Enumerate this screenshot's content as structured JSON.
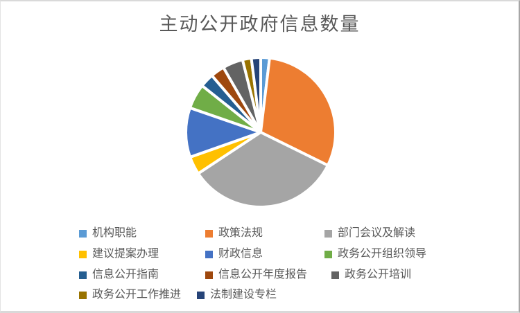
{
  "chart_data": {
    "type": "pie",
    "title": "主动公开政府信息数量",
    "categories": [
      "机构职能",
      "政策法规",
      "部门会议及解读",
      "建议提案办理",
      "财政信息",
      "政务公开组织领导",
      "信息公开指南",
      "信息公开年度报告",
      "政务公开培训",
      "政务公开工作推进",
      "法制建设专栏"
    ],
    "values": [
      1.9,
      30.4,
      33.4,
      3.9,
      10.7,
      5.4,
      3.0,
      3.0,
      4.4,
      1.9,
      2.0
    ],
    "unit": "estimated % share (no data labels shown)",
    "colors": [
      "#5B9BD5",
      "#ED7D31",
      "#A5A5A5",
      "#FFC000",
      "#4472C4",
      "#70AD47",
      "#255E91",
      "#9E480E",
      "#636363",
      "#997300",
      "#264478"
    ],
    "start_angle_deg": 0,
    "direction": "clockwise",
    "slice_border_color": "#FFFFFF",
    "legend_position": "bottom",
    "title_color": "#595959",
    "legend_text_color": "#595959"
  }
}
